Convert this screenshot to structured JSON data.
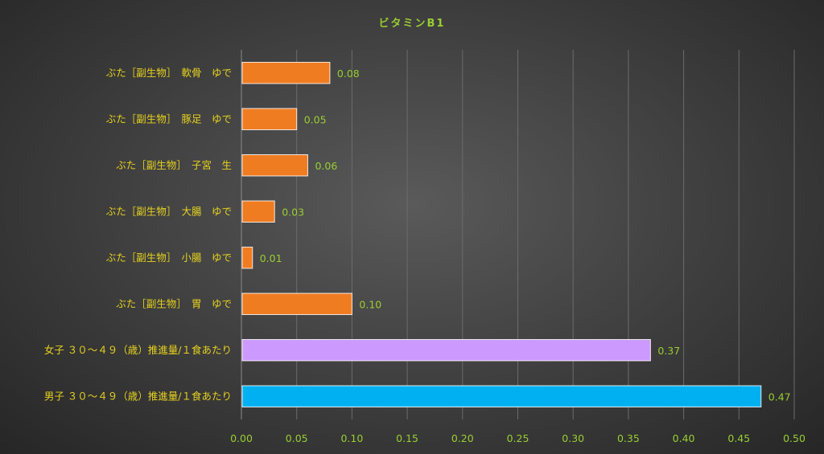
{
  "chart_data": {
    "type": "bar",
    "orientation": "horizontal",
    "title": "ビタミンB1",
    "categories": [
      "ぶた［副生物］　軟骨　ゆで",
      "ぶた［副生物］　豚足　ゆで",
      "ぶた［副生物］　子宮　生",
      "ぶた［副生物］　大腸　ゆで",
      "ぶた［副生物］　小腸　ゆで",
      "ぶた［副生物］　胃　ゆで",
      "女子 ３０～４９（歳）推進量/１食あたり",
      "男子 ３０～４９（歳）推進量/１食あたり"
    ],
    "values": [
      0.08,
      0.05,
      0.06,
      0.03,
      0.01,
      0.1,
      0.37,
      0.47
    ],
    "value_labels": [
      "0.08",
      "0.05",
      "0.06",
      "0.03",
      "0.01",
      "0.10",
      "0.37",
      "0.47"
    ],
    "bar_colors": [
      "#f07c22",
      "#f07c22",
      "#f07c22",
      "#f07c22",
      "#f07c22",
      "#f07c22",
      "#cc99ff",
      "#00b0f0"
    ],
    "xlim": [
      0,
      0.5
    ],
    "xticks": [
      0,
      0.05,
      0.1,
      0.15,
      0.2,
      0.25,
      0.3,
      0.35,
      0.4,
      0.45,
      0.5
    ],
    "xtick_labels": [
      "0.00",
      "0.05",
      "0.10",
      "0.15",
      "0.20",
      "0.25",
      "0.30",
      "0.35",
      "0.40",
      "0.45",
      "0.50"
    ],
    "grid": true,
    "legend": "none",
    "colors": {
      "title": "#9acd32",
      "category_text": "#e6d21e",
      "tick_text": "#9acd32",
      "value_text": "#9acd32"
    }
  }
}
